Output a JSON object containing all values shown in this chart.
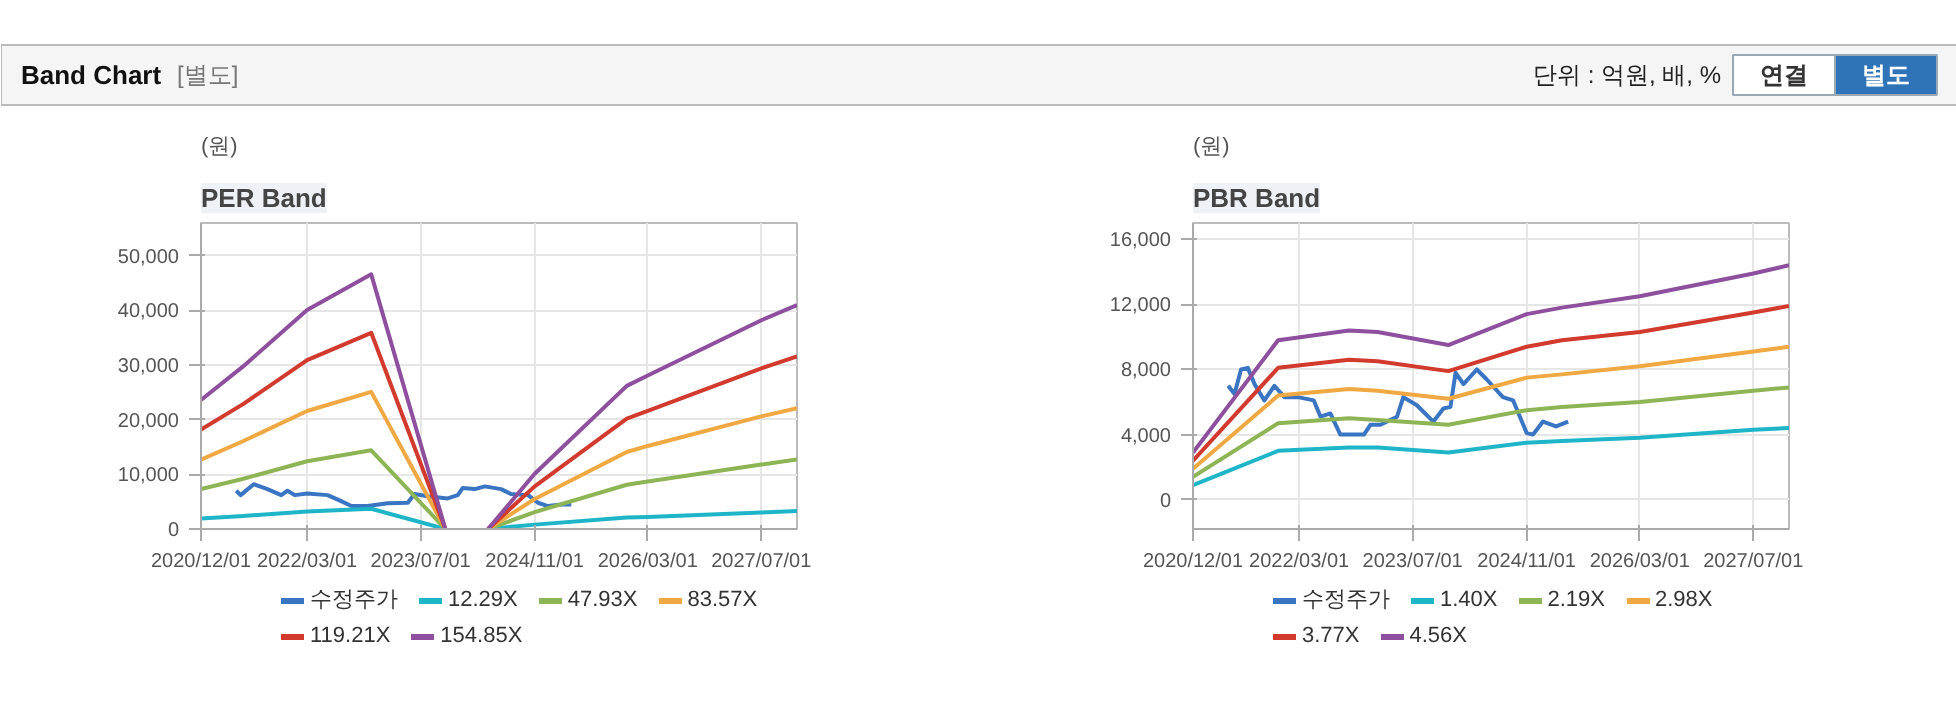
{
  "chart_data": [
    {
      "type": "other",
      "title": "Band Chart",
      "annotations": [
        "[별도]",
        "단위 : 억원, 배, %",
        "연결",
        "별도"
      ]
    },
    {
      "type": "line",
      "title": "PER Band",
      "ylabel": "(원)",
      "grid": true,
      "legend": "bottom",
      "line_style": "solid",
      "xlim": [
        "2020-12-01",
        "2027-12-01"
      ],
      "xticks": [
        {
          "value": "2020-12-01",
          "label": "2020/12/01"
        },
        {
          "value": "2022-03-01",
          "label": "2022/03/01"
        },
        {
          "value": "2023-07-01",
          "label": "2023/07/01"
        },
        {
          "value": "2024-11-01",
          "label": "2024/11/01"
        },
        {
          "value": "2026-03-01",
          "label": "2026/03/01"
        },
        {
          "value": "2027-07-01",
          "label": "2027/07/01"
        }
      ],
      "ylim": [
        0,
        56000
      ],
      "yticks": [
        0,
        {
          "value": 10000,
          "label": "10,000"
        },
        {
          "value": 20000,
          "label": "20,000"
        },
        {
          "value": 30000,
          "label": "30,000"
        },
        {
          "value": 40000,
          "label": "40,000"
        },
        {
          "value": 50000,
          "label": "50,000"
        }
      ],
      "series": [
        {
          "name": "수정주가",
          "color": "#3a75c4",
          "x": [
            "2021-05-01",
            "2021-05-20",
            "2021-07-15",
            "2021-09-12",
            "2021-11-10",
            "2021-12-07",
            "2022-01-07",
            "2022-03-01",
            "2022-05-28",
            "2022-07-25",
            "2022-09-07",
            "2022-11-15",
            "2023-02-10",
            "2023-05-07",
            "2023-06-04",
            "2023-08-01",
            "2023-10-25",
            "2023-12-07",
            "2023-12-28",
            "2024-02-18",
            "2024-04-01",
            "2024-06-10",
            "2024-07-22",
            "2024-10-04",
            "2024-11-15",
            "2024-12-28",
            "2025-02-25",
            "2025-04-07"
          ],
          "values": [
            7000,
            6200,
            8200,
            7300,
            6200,
            7000,
            6200,
            6500,
            6200,
            5100,
            4200,
            4200,
            4700,
            4800,
            6400,
            6000,
            5600,
            6200,
            7500,
            7300,
            7800,
            7300,
            6400,
            6200,
            4800,
            4200,
            4500,
            4500
          ]
        },
        {
          "name": "12.29X",
          "color": "#1fb5c9",
          "x": [
            "2020-12-01",
            "2021-06-01",
            "2022-03-01",
            "2022-12-01",
            "2023-10-15",
            "2024-01-15",
            "2024-04-15",
            "2024-11-01",
            "2025-12-01",
            "2026-03-01",
            "2027-07-01",
            "2027-12-01"
          ],
          "values": [
            1900,
            2400,
            3200,
            3700,
            0,
            null,
            0,
            800,
            2100,
            2200,
            3000,
            3300
          ]
        },
        {
          "name": "47.93X",
          "color": "#8db555",
          "x": [
            "2020-12-01",
            "2021-06-01",
            "2022-03-01",
            "2022-12-01",
            "2023-10-15",
            "2024-01-15",
            "2024-04-15",
            "2024-11-01",
            "2025-12-01",
            "2026-03-01",
            "2027-07-01",
            "2027-12-01"
          ],
          "values": [
            7300,
            9200,
            12400,
            14400,
            0,
            null,
            0,
            3100,
            8100,
            8700,
            11800,
            12700
          ]
        },
        {
          "name": "83.57X",
          "color": "#f0a842",
          "x": [
            "2020-12-01",
            "2021-06-01",
            "2022-03-01",
            "2022-12-01",
            "2023-10-15",
            "2024-01-15",
            "2024-04-15",
            "2024-11-01",
            "2025-12-01",
            "2026-03-01",
            "2027-07-01",
            "2027-12-01"
          ],
          "values": [
            12700,
            16100,
            21600,
            25100,
            0,
            null,
            0,
            5500,
            14100,
            15200,
            20600,
            22100
          ]
        },
        {
          "name": "119.21X",
          "color": "#d23a2e",
          "x": [
            "2020-12-01",
            "2021-06-01",
            "2022-03-01",
            "2022-12-01",
            "2023-10-15",
            "2024-01-15",
            "2024-04-15",
            "2024-11-01",
            "2025-12-01",
            "2026-03-01",
            "2027-07-01",
            "2027-12-01"
          ],
          "values": [
            18200,
            22900,
            30900,
            35900,
            0,
            null,
            0,
            7800,
            20200,
            21600,
            29400,
            31600
          ]
        },
        {
          "name": "154.85X",
          "color": "#8e4f9e",
          "x": [
            "2020-12-01",
            "2021-06-01",
            "2022-03-01",
            "2022-12-01",
            "2023-10-15",
            "2024-01-15",
            "2024-04-15",
            "2024-11-01",
            "2025-12-01",
            "2026-03-01",
            "2027-07-01",
            "2027-12-01"
          ],
          "values": [
            23600,
            29800,
            40100,
            46600,
            0,
            null,
            0,
            10100,
            26200,
            28100,
            38200,
            41000
          ]
        }
      ]
    },
    {
      "type": "line",
      "title": "PBR Band",
      "ylabel": "(원)",
      "grid": true,
      "legend": "bottom",
      "line_style": "solid",
      "xlim": [
        "2020-12-01",
        "2027-12-01"
      ],
      "xticks": [
        {
          "value": "2020-12-01",
          "label": "2020/12/01"
        },
        {
          "value": "2022-03-01",
          "label": "2022/03/01"
        },
        {
          "value": "2023-07-01",
          "label": "2023/07/01"
        },
        {
          "value": "2024-11-01",
          "label": "2024/11/01"
        },
        {
          "value": "2026-03-01",
          "label": "2026/03/01"
        },
        {
          "value": "2027-07-01",
          "label": "2027/07/01"
        }
      ],
      "ylim": [
        -1800,
        17000
      ],
      "yticks": [
        0,
        {
          "value": 4000,
          "label": "4,000"
        },
        {
          "value": 8000,
          "label": "8,000"
        },
        {
          "value": 12000,
          "label": "12,000"
        },
        {
          "value": 16000,
          "label": "16,000"
        }
      ],
      "series": [
        {
          "name": "수정주가",
          "color": "#3a75c4",
          "x": [
            "2021-05-01",
            "2021-05-28",
            "2021-06-25",
            "2021-07-24",
            "2021-08-22",
            "2021-10-03",
            "2021-11-15",
            "2021-12-28",
            "2022-02-24",
            "2022-05-03",
            "2022-06-01",
            "2022-07-13",
            "2022-08-25",
            "2022-12-04",
            "2023-01-01",
            "2023-02-13",
            "2023-04-25",
            "2023-05-22",
            "2023-07-19",
            "2023-09-28",
            "2023-11-10",
            "2023-12-10",
            "2024-01-01",
            "2024-02-04",
            "2024-04-01",
            "2024-05-13",
            "2024-07-22",
            "2024-09-04",
            "2024-11-01",
            "2024-11-28",
            "2025-01-10",
            "2025-03-07",
            "2025-04-28"
          ],
          "values": [
            7000,
            6500,
            8000,
            8100,
            7100,
            6100,
            7000,
            6300,
            6300,
            6100,
            5100,
            5300,
            4000,
            4000,
            4600,
            4600,
            5100,
            6300,
            5800,
            4800,
            5600,
            5700,
            7800,
            7100,
            8000,
            7400,
            6300,
            6100,
            4100,
            4000,
            4800,
            4500,
            4800
          ]
        },
        {
          "name": "1.40X",
          "color": "#1fb5c9",
          "x": [
            "2020-12-01",
            "2021-12-01",
            "2022-10-01",
            "2023-02-01",
            "2023-12-01",
            "2024-11-01",
            "2025-04-01",
            "2026-03-01",
            "2027-07-01",
            "2027-12-01"
          ],
          "values": [
            900,
            3000,
            3200,
            3200,
            2900,
            3500,
            3600,
            3800,
            4300,
            4400
          ]
        },
        {
          "name": "2.19X",
          "color": "#8db555",
          "x": [
            "2020-12-01",
            "2021-12-01",
            "2022-10-01",
            "2023-02-01",
            "2023-12-01",
            "2024-11-01",
            "2025-04-01",
            "2026-03-01",
            "2027-07-01",
            "2027-12-01"
          ],
          "values": [
            1400,
            4700,
            5000,
            4900,
            4600,
            5500,
            5700,
            6000,
            6700,
            6900
          ]
        },
        {
          "name": "2.98X",
          "color": "#f0a842",
          "x": [
            "2020-12-01",
            "2021-12-01",
            "2022-10-01",
            "2023-02-01",
            "2023-12-01",
            "2024-11-01",
            "2025-04-01",
            "2026-03-01",
            "2027-07-01",
            "2027-12-01"
          ],
          "values": [
            1900,
            6400,
            6800,
            6700,
            6200,
            7500,
            7700,
            8200,
            9100,
            9400
          ]
        },
        {
          "name": "3.77X",
          "color": "#d23a2e",
          "x": [
            "2020-12-01",
            "2021-12-01",
            "2022-10-01",
            "2023-02-01",
            "2023-12-01",
            "2024-11-01",
            "2025-04-01",
            "2026-03-01",
            "2027-07-01",
            "2027-12-01"
          ],
          "values": [
            2400,
            8100,
            8600,
            8500,
            7900,
            9400,
            9800,
            10300,
            11500,
            11900
          ]
        },
        {
          "name": "4.56X",
          "color": "#8e4f9e",
          "x": [
            "2020-12-01",
            "2021-12-01",
            "2022-10-01",
            "2023-02-01",
            "2023-12-01",
            "2024-11-01",
            "2025-04-01",
            "2026-03-01",
            "2027-07-01",
            "2027-12-01"
          ],
          "values": [
            2900,
            9800,
            10400,
            10300,
            9500,
            11400,
            11800,
            12500,
            13900,
            14400
          ]
        }
      ]
    }
  ]
}
